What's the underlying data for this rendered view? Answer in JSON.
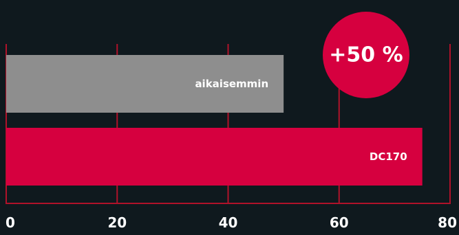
{
  "chart_data": {
    "type": "bar",
    "orientation": "horizontal",
    "categories": [
      "aikaisemmin",
      "DC170"
    ],
    "values": [
      50,
      75
    ],
    "xlim": [
      0,
      80
    ],
    "xticks": [
      "0",
      "20",
      "40",
      "60",
      "80"
    ],
    "grid": true,
    "annotation": "+50 %"
  },
  "colors": {
    "background": "#0f191e",
    "accent": "#d6003f",
    "previous_bar": "#8e8e8e",
    "grid": "#b0122a",
    "text": "#ffffff"
  }
}
